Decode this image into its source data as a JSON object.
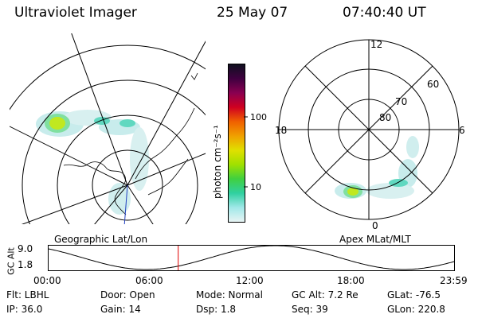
{
  "header": {
    "instrument": "Ultraviolet Imager",
    "date": "25 May 07",
    "time": "07:40:40 UT"
  },
  "colorbar": {
    "label": "photon cm⁻²s⁻¹",
    "ticks": [
      "100",
      "10"
    ],
    "colors": [
      "#101020",
      "#400040",
      "#8a0050",
      "#d00020",
      "#f06000",
      "#f0a000",
      "#e0e000",
      "#a0e000",
      "#40d040",
      "#30d0a0",
      "#a0e8e8",
      "#e8f4f4"
    ]
  },
  "left_map": {
    "caption": "Geographic Lat/Lon"
  },
  "right_map": {
    "caption": "Apex MLat/MLT",
    "mlt_labels": {
      "top": "12",
      "left": "18",
      "right": "6",
      "bottom": "0"
    },
    "lat_labels": [
      "80",
      "70",
      "60"
    ]
  },
  "altitude_plot": {
    "ylabel": "GC Alt",
    "yticks": [
      "9.0",
      "1.8"
    ],
    "xticks": [
      "00:00",
      "06:00",
      "12:00",
      "18:00",
      "23:59"
    ],
    "current_time_hours": 7.68,
    "marker_color": "#e00000"
  },
  "info": {
    "flt": "Flt: LBHL",
    "door": "Door: Open",
    "mode": "Mode: Normal",
    "gc_alt": "GC Alt: 7.2 Re",
    "glat": "GLat: -76.5",
    "ip": "IP: 36.0",
    "gain": "Gain: 14",
    "dsp": "Dsp:    1.8",
    "seq": "Seq: 39",
    "glon": "GLon: 220.8"
  }
}
